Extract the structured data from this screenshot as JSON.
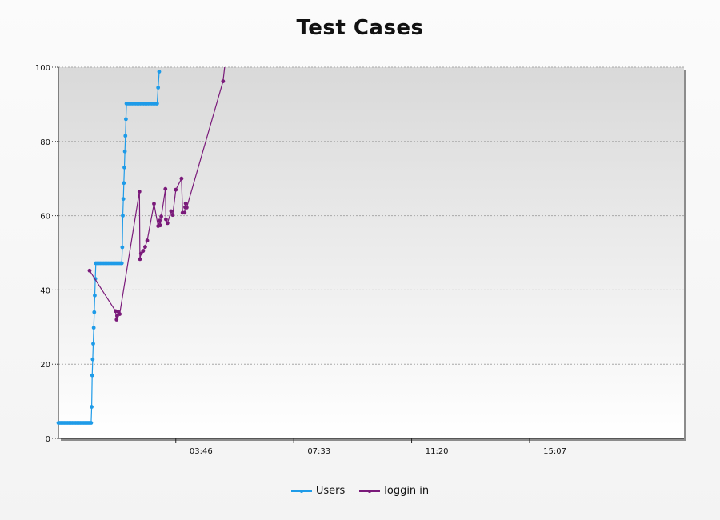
{
  "chart_data": {
    "type": "line",
    "title": "Test Cases",
    "xlabel": "",
    "ylabel": "",
    "ylim": [
      0,
      100
    ],
    "y_ticks": [
      "0",
      "20",
      "40",
      "60",
      "80",
      "100"
    ],
    "x_ticks": [
      "03:46",
      "07:33",
      "11:20",
      "15:07"
    ],
    "grid": true,
    "legend_position": "bottom",
    "colors": {
      "Users": "#1e9be8",
      "loggin in": "#7a1a7a"
    },
    "series": [
      {
        "name": "Users",
        "points": [
          [
            "00:00",
            4.2
          ],
          [
            "00:03",
            4.2
          ],
          [
            "00:06",
            4.2
          ],
          [
            "00:09",
            4.2
          ],
          [
            "00:12",
            4.2
          ],
          [
            "00:15",
            4.2
          ],
          [
            "00:18",
            4.2
          ],
          [
            "00:21",
            4.2
          ],
          [
            "00:24",
            4.2
          ],
          [
            "00:27",
            4.2
          ],
          [
            "00:30",
            4.2
          ],
          [
            "00:33",
            4.2
          ],
          [
            "00:36",
            4.2
          ],
          [
            "00:39",
            4.2
          ],
          [
            "00:42",
            4.2
          ],
          [
            "00:45",
            4.2
          ],
          [
            "00:48",
            4.2
          ],
          [
            "00:51",
            4.2
          ],
          [
            "00:54",
            4.2
          ],
          [
            "00:57",
            4.2
          ],
          [
            "01:00",
            4.2
          ],
          [
            "01:03",
            4.2
          ],
          [
            "01:04",
            8.5
          ],
          [
            "01:05",
            17.0
          ],
          [
            "01:06",
            21.3
          ],
          [
            "01:07",
            25.5
          ],
          [
            "01:08",
            29.8
          ],
          [
            "01:09",
            34.0
          ],
          [
            "01:10",
            38.5
          ],
          [
            "01:11",
            43.0
          ],
          [
            "01:12",
            47.2
          ],
          [
            "01:15",
            47.2
          ],
          [
            "01:18",
            47.2
          ],
          [
            "01:21",
            47.2
          ],
          [
            "01:24",
            47.2
          ],
          [
            "01:27",
            47.2
          ],
          [
            "01:30",
            47.2
          ],
          [
            "01:33",
            47.2
          ],
          [
            "01:36",
            47.2
          ],
          [
            "01:39",
            47.2
          ],
          [
            "01:42",
            47.2
          ],
          [
            "01:45",
            47.2
          ],
          [
            "01:48",
            47.2
          ],
          [
            "01:51",
            47.2
          ],
          [
            "01:54",
            47.2
          ],
          [
            "01:57",
            47.2
          ],
          [
            "02:00",
            47.2
          ],
          [
            "02:02",
            47.2
          ],
          [
            "02:03",
            51.5
          ],
          [
            "02:04",
            60.0
          ],
          [
            "02:05",
            64.5
          ],
          [
            "02:06",
            68.8
          ],
          [
            "02:07",
            73.0
          ],
          [
            "02:08",
            77.3
          ],
          [
            "02:09",
            81.5
          ],
          [
            "02:10",
            86.0
          ],
          [
            "02:11",
            90.2
          ],
          [
            "02:14",
            90.2
          ],
          [
            "02:17",
            90.2
          ],
          [
            "02:20",
            90.2
          ],
          [
            "02:23",
            90.2
          ],
          [
            "02:26",
            90.2
          ],
          [
            "02:29",
            90.2
          ],
          [
            "02:32",
            90.2
          ],
          [
            "02:35",
            90.2
          ],
          [
            "02:38",
            90.2
          ],
          [
            "02:41",
            90.2
          ],
          [
            "02:44",
            90.2
          ],
          [
            "02:47",
            90.2
          ],
          [
            "02:50",
            90.2
          ],
          [
            "02:53",
            90.2
          ],
          [
            "02:56",
            90.2
          ],
          [
            "02:59",
            90.2
          ],
          [
            "03:02",
            90.2
          ],
          [
            "03:05",
            90.2
          ],
          [
            "03:08",
            90.2
          ],
          [
            "03:10",
            90.2
          ],
          [
            "03:12",
            94.5
          ],
          [
            "03:14",
            98.8
          ]
        ]
      },
      {
        "name": "loggin in",
        "points": [
          [
            "01:00",
            45.2
          ],
          [
            "01:50",
            34.3
          ],
          [
            "01:52",
            32.0
          ],
          [
            "01:53",
            33.0
          ],
          [
            "01:55",
            34.2
          ],
          [
            "01:58",
            33.5
          ],
          [
            "02:36",
            66.5
          ],
          [
            "02:37",
            48.3
          ],
          [
            "02:39",
            49.8
          ],
          [
            "02:43",
            50.5
          ],
          [
            "02:47",
            51.6
          ],
          [
            "02:51",
            53.3
          ],
          [
            "03:04",
            63.2
          ],
          [
            "03:12",
            57.2
          ],
          [
            "03:15",
            58.7
          ],
          [
            "03:16",
            57.4
          ],
          [
            "03:18",
            59.8
          ],
          [
            "03:26",
            67.2
          ],
          [
            "03:27",
            59.0
          ],
          [
            "03:30",
            58.0
          ],
          [
            "03:37",
            61.2
          ],
          [
            "03:40",
            60.2
          ],
          [
            "03:46",
            67.0
          ],
          [
            "03:57",
            70.0
          ],
          [
            "03:59",
            60.8
          ],
          [
            "04:03",
            60.8
          ],
          [
            "04:04",
            62.3
          ],
          [
            "04:05",
            63.3
          ],
          [
            "04:07",
            62.2
          ],
          [
            "05:17",
            96.2
          ],
          [
            "05:20",
            100.0
          ]
        ]
      }
    ]
  }
}
